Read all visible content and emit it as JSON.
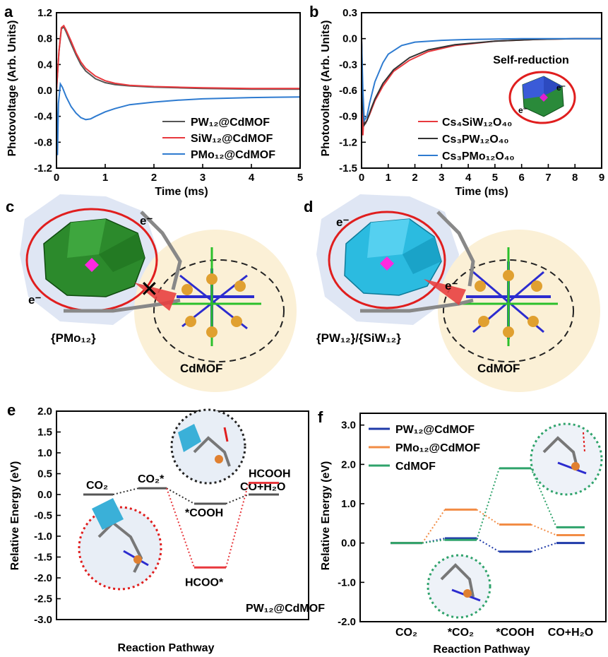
{
  "panels": {
    "a": "a",
    "b": "b",
    "c": "c",
    "d": "d",
    "e": "e",
    "f": "f"
  },
  "chart_data": [
    {
      "panel": "a",
      "type": "line",
      "xlabel": "Time (ms)",
      "ylabel": "Photovoltage (Arb. Units)",
      "xlim": [
        0,
        5
      ],
      "ylim": [
        -1.2,
        1.2
      ],
      "xticks": [
        "0",
        "1",
        "2",
        "3",
        "4",
        "5"
      ],
      "yticks": [
        "-1.2",
        "-0.8",
        "-0.4",
        "0.0",
        "0.4",
        "0.8",
        "1.2"
      ],
      "legend_position": "bottom-right",
      "series": [
        {
          "name": "PW₁₂@CdMOF",
          "color": "#555555",
          "x": [
            0,
            0.05,
            0.1,
            0.15,
            0.2,
            0.3,
            0.4,
            0.5,
            0.6,
            0.8,
            1.0,
            1.2,
            1.5,
            2,
            2.5,
            3,
            4,
            5
          ],
          "y": [
            0,
            0.6,
            0.95,
            0.98,
            0.9,
            0.72,
            0.55,
            0.4,
            0.3,
            0.18,
            0.12,
            0.09,
            0.07,
            0.05,
            0.04,
            0.03,
            0.02,
            0.02
          ]
        },
        {
          "name": "SiW₁₂@CdMOF",
          "color": "#e8383d",
          "x": [
            0,
            0.05,
            0.1,
            0.15,
            0.2,
            0.3,
            0.4,
            0.5,
            0.6,
            0.8,
            1.0,
            1.2,
            1.5,
            2,
            2.5,
            3,
            4,
            5
          ],
          "y": [
            0,
            0.6,
            0.97,
            1.0,
            0.93,
            0.76,
            0.58,
            0.44,
            0.34,
            0.22,
            0.15,
            0.11,
            0.08,
            0.06,
            0.05,
            0.04,
            0.03,
            0.03
          ]
        },
        {
          "name": "PMo₁₂@CdMOF",
          "color": "#2e7bd0",
          "x": [
            0,
            0.02,
            0.04,
            0.08,
            0.12,
            0.2,
            0.3,
            0.4,
            0.5,
            0.6,
            0.7,
            0.8,
            1.0,
            1.2,
            1.5,
            2,
            2.5,
            3,
            4,
            5
          ],
          "y": [
            0,
            -1.0,
            -0.2,
            0.1,
            0.05,
            -0.1,
            -0.25,
            -0.35,
            -0.42,
            -0.45,
            -0.44,
            -0.4,
            -0.33,
            -0.28,
            -0.22,
            -0.18,
            -0.15,
            -0.13,
            -0.11,
            -0.1
          ]
        }
      ]
    },
    {
      "panel": "b",
      "type": "line",
      "xlabel": "Time (ms)",
      "ylabel": "Photovoltage (Arb. Units)",
      "xlim": [
        0,
        9
      ],
      "ylim": [
        -1.5,
        0.3
      ],
      "xticks": [
        "0",
        "1",
        "2",
        "3",
        "4",
        "5",
        "6",
        "7",
        "8",
        "9"
      ],
      "yticks": [
        "-1.5",
        "-1.2",
        "-0.9",
        "-0.6",
        "-0.3",
        "0.0",
        "0.3"
      ],
      "legend_position": "bottom-left",
      "annotation": "Self-reduction",
      "series": [
        {
          "name": "Cs₄SiW₁₂O₄₀",
          "color": "#e8383d",
          "x": [
            0,
            0.05,
            0.08,
            0.15,
            0.3,
            0.5,
            0.8,
            1.2,
            1.8,
            2.5,
            3.5,
            5,
            6.5,
            8,
            9
          ],
          "y": [
            0,
            -1.12,
            -0.95,
            -0.98,
            -0.88,
            -0.72,
            -0.55,
            -0.38,
            -0.25,
            -0.15,
            -0.08,
            -0.03,
            -0.01,
            0,
            0
          ]
        },
        {
          "name": "Cs₃PW₁₂O₄₀",
          "color": "#333333",
          "x": [
            0,
            0.05,
            0.1,
            0.2,
            0.35,
            0.5,
            0.8,
            1.2,
            1.8,
            2.5,
            3.5,
            5,
            6.5,
            8,
            9
          ],
          "y": [
            0,
            -0.8,
            -1.0,
            -0.95,
            -0.82,
            -0.7,
            -0.52,
            -0.36,
            -0.22,
            -0.13,
            -0.07,
            -0.03,
            -0.01,
            0,
            0
          ]
        },
        {
          "name": "Cs₃PMo₁₂O₄₀",
          "color": "#2e7bd0",
          "x": [
            0,
            0.05,
            0.1,
            0.2,
            0.3,
            0.5,
            0.8,
            1.0,
            1.5,
            2,
            3,
            4,
            6,
            8,
            9
          ],
          "y": [
            0,
            -0.6,
            -0.95,
            -0.9,
            -0.75,
            -0.5,
            -0.28,
            -0.18,
            -0.08,
            -0.04,
            -0.02,
            -0.01,
            0,
            0,
            0
          ]
        }
      ]
    },
    {
      "panel": "e",
      "type": "energy-diagram",
      "xlabel": "Reaction Pathway",
      "ylabel": "Relative Energy (eV)",
      "ylim": [
        -3.0,
        2.0
      ],
      "yticks": [
        "-3.0",
        "-2.5",
        "-2.0",
        "-1.5",
        "-1.0",
        "-0.5",
        "0.0",
        "0.5",
        "1.0",
        "1.5",
        "2.0"
      ],
      "note": "PW₁₂@CdMOF",
      "path_gray": [
        {
          "label": "CO₂",
          "y": 0.0
        },
        {
          "label": "CO₂*",
          "y": 0.15
        },
        {
          "label": "*COOH",
          "y": -0.22
        },
        {
          "label": "CO+H₂O",
          "y": 0.0
        }
      ],
      "path_red": [
        {
          "label": "HCOO*",
          "y": -1.75
        },
        {
          "label": "HCOOH",
          "y": 0.28
        }
      ]
    },
    {
      "panel": "f",
      "type": "energy-diagram",
      "xlabel": "Reaction Pathway",
      "ylabel": "Relative Energy (eV)",
      "ylim": [
        -2.0,
        3.3
      ],
      "yticks": [
        "-2.0",
        "-1.0",
        "0.0",
        "1.0",
        "2.0",
        "3.0"
      ],
      "categories": [
        "CO₂",
        "*CO₂",
        "*COOH",
        "CO+H₂O"
      ],
      "legend_position": "top-left",
      "series": [
        {
          "name": "PW₁₂@CdMOF",
          "color": "#1f3aa8",
          "values": [
            0.0,
            0.12,
            -0.22,
            0.0
          ]
        },
        {
          "name": "PMo₁₂@CdMOF",
          "color": "#f28c45",
          "values": [
            0.0,
            0.85,
            0.47,
            0.2
          ]
        },
        {
          "name": "CdMOF",
          "color": "#2fa36b",
          "values": [
            0.0,
            0.08,
            1.9,
            0.4
          ]
        }
      ]
    }
  ],
  "panel_c": {
    "cluster_label": "{PMo₁₂}",
    "mof_label": "CdMOF",
    "electron": "e⁻",
    "blocked_mark": "✕"
  },
  "panel_d": {
    "cluster_label": "{PW₁₂}/{SiW₁₂}",
    "mof_label": "CdMOF",
    "electron": "e⁻"
  }
}
